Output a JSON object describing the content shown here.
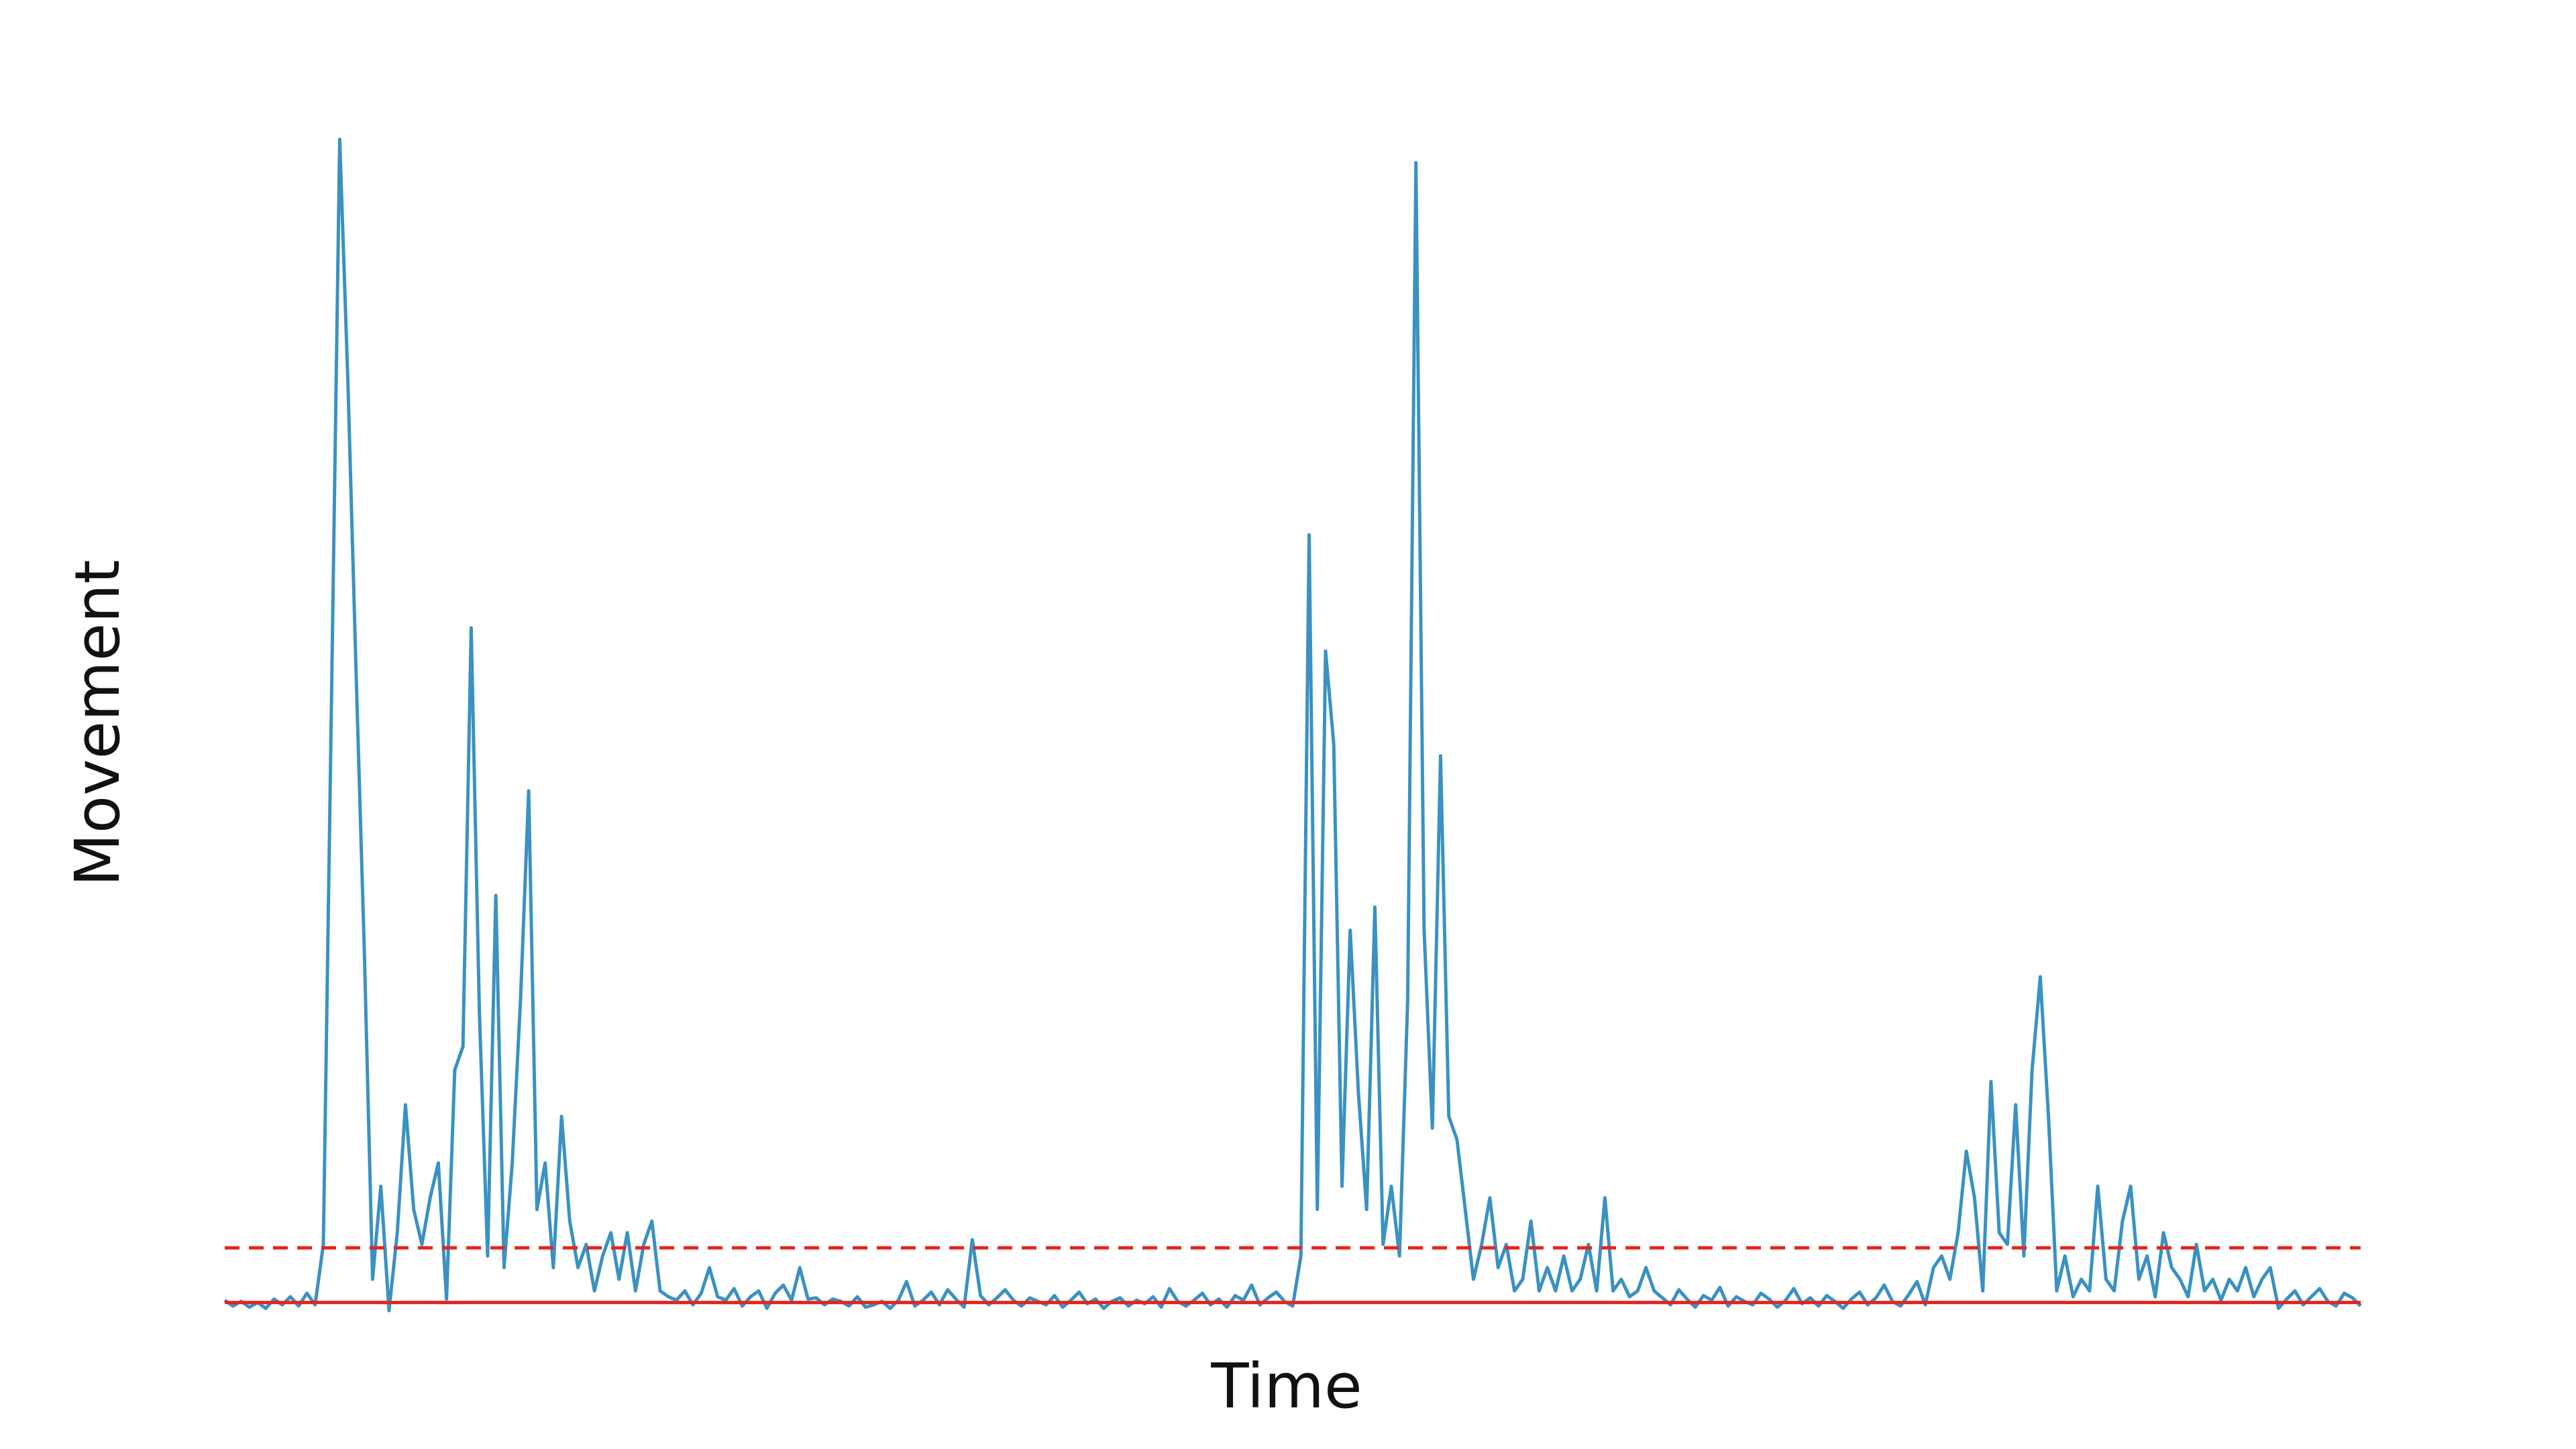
{
  "chart_data": {
    "type": "line",
    "x_label": "Time",
    "y_label": "Movement",
    "ylim": [
      -1,
      102
    ],
    "series": [
      {
        "color": "#3a91c2",
        "values": [
          0.2,
          -0.3,
          0.1,
          -0.4,
          0,
          -0.5,
          0.3,
          -0.2,
          0.5,
          -0.3,
          0.8,
          -0.2,
          5,
          52,
          100,
          79,
          54,
          30,
          2,
          10,
          -0.7,
          6,
          17,
          8,
          5,
          9,
          12,
          0.3,
          20,
          22,
          58,
          25,
          4,
          35,
          3,
          12,
          26,
          44,
          8,
          12,
          3,
          16,
          7,
          3,
          5,
          1,
          4,
          6,
          2,
          6,
          1,
          5,
          7,
          1,
          0.5,
          0.2,
          1,
          -0.2,
          0.8,
          3,
          0.5,
          0.2,
          1.2,
          -0.3,
          0.5,
          1,
          -0.5,
          0.8,
          1.5,
          0.2,
          3,
          0.3,
          0.4,
          -0.2,
          0.3,
          0.1,
          -0.3,
          0.5,
          -0.4,
          -0.2,
          0.1,
          -0.5,
          0.2,
          1.8,
          -0.3,
          0.2,
          0.9,
          -0.2,
          1.1,
          0.3,
          -0.4,
          5.4,
          0.6,
          -0.2,
          0.4,
          1.1,
          0.2,
          -0.3,
          0.4,
          0.1,
          -0.2,
          0.6,
          -0.4,
          0.2,
          0.9,
          -0.1,
          0.3,
          -0.5,
          0.1,
          0.4,
          -0.3,
          0.2,
          -0.1,
          0.5,
          -0.4,
          1.2,
          0.1,
          -0.3,
          0.2,
          0.8,
          -0.2,
          0.3,
          -0.4,
          0.6,
          0.2,
          1.5,
          -0.2,
          0.4,
          0.9,
          0.1,
          -0.3,
          4,
          66,
          8,
          56,
          48,
          10,
          32,
          18,
          8,
          34,
          5,
          10,
          4,
          26,
          98,
          32,
          15,
          47,
          16,
          14,
          8,
          2,
          5,
          9,
          3,
          5,
          1,
          2,
          7,
          1,
          3,
          1,
          4,
          1,
          2,
          5,
          1,
          9,
          1,
          2,
          0.5,
          1,
          3,
          1,
          0.4,
          -0.2,
          1.1,
          0.3,
          -0.4,
          0.6,
          0.2,
          1.3,
          -0.3,
          0.5,
          0.1,
          -0.2,
          0.8,
          0.3,
          -0.4,
          0.2,
          1.2,
          -0.1,
          0.4,
          -0.3,
          0.6,
          0.1,
          -0.5,
          0.3,
          0.9,
          -0.2,
          0.4,
          1.5,
          0.1,
          -0.3,
          0.7,
          1.8,
          -0.2,
          3,
          4,
          2,
          6,
          13,
          9,
          1,
          19,
          6,
          5,
          17,
          4,
          20,
          28,
          16,
          1,
          4,
          0.5,
          2,
          1,
          10,
          2,
          1,
          7,
          10,
          2,
          4,
          0.5,
          6,
          3,
          2,
          0.5,
          5,
          1,
          2,
          0.2,
          2,
          1,
          3,
          0.5,
          2,
          3,
          -0.5,
          0.3,
          1,
          -0.2,
          0.5,
          1.2,
          0.1,
          -0.3,
          0.8,
          0.4,
          -0.3
        ]
      }
    ],
    "hlines": [
      {
        "value": 0,
        "color": "#e3261f",
        "style": "solid"
      },
      {
        "value": 4.7,
        "color": "#e3261f",
        "style": "dashed"
      }
    ]
  }
}
